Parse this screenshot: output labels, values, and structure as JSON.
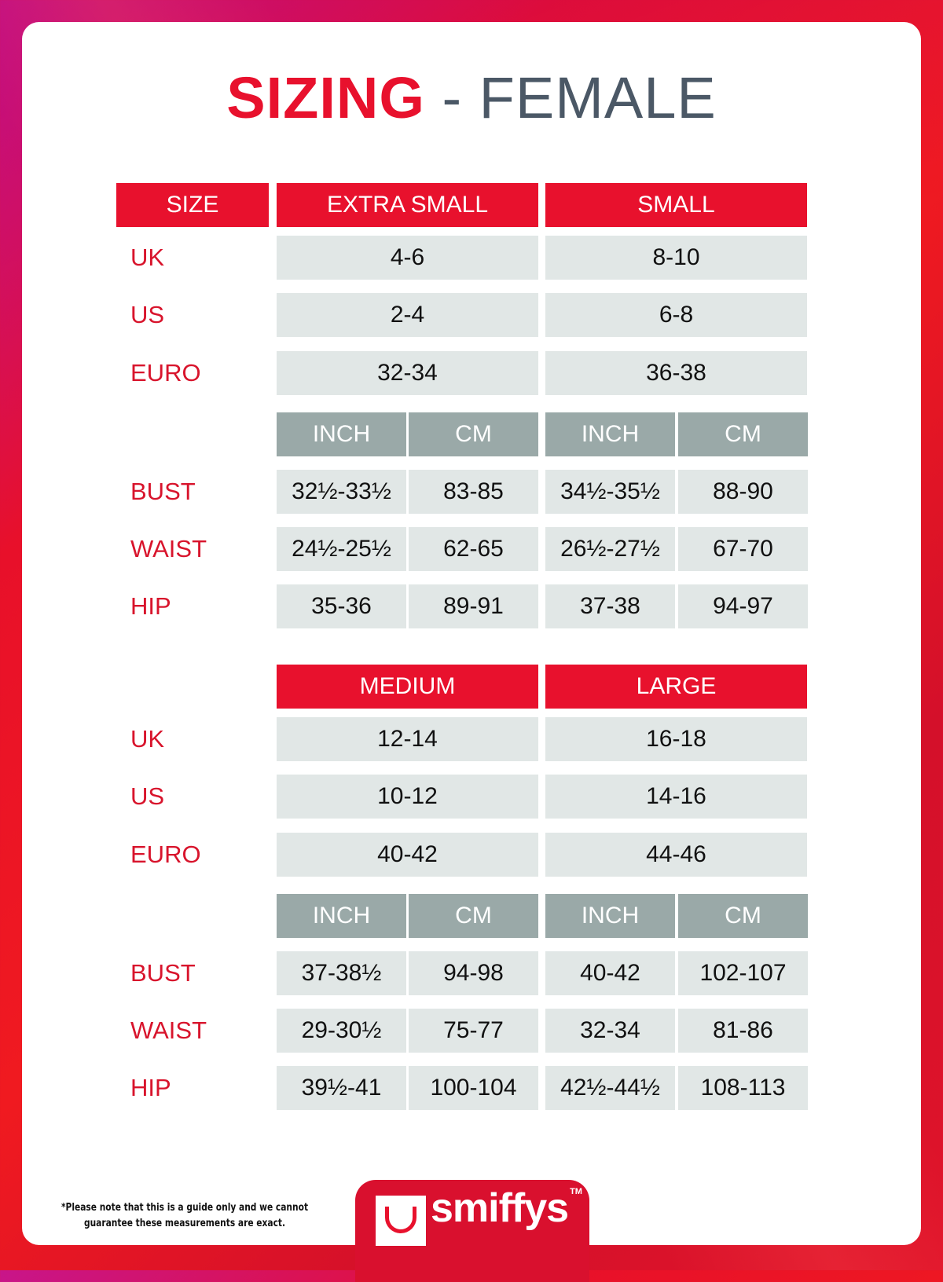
{
  "title": {
    "highlight": "SIZING",
    "rest": " - FEMALE"
  },
  "colors": {
    "accent": "#e8112d",
    "cell": "#e1e7e6",
    "subheader": "#9aa9a8",
    "title_gray": "#4b5866"
  },
  "size_label": "SIZE",
  "row_labels": {
    "uk": "UK",
    "us": "US",
    "euro": "EURO",
    "bust": "BUST",
    "waist": "WAIST",
    "hip": "HIP"
  },
  "unit_labels": [
    "INCH",
    "CM"
  ],
  "sections": [
    {
      "sizes": [
        {
          "name": "EXTRA SMALL",
          "uk": "4-6",
          "us": "2-4",
          "euro": "32-34",
          "bust": [
            "32½-33½",
            "83-85"
          ],
          "waist": [
            "24½-25½",
            "62-65"
          ],
          "hip": [
            "35-36",
            "89-91"
          ]
        },
        {
          "name": "SMALL",
          "uk": "8-10",
          "us": "6-8",
          "euro": "36-38",
          "bust": [
            "34½-35½",
            "88-90"
          ],
          "waist": [
            "26½-27½",
            "67-70"
          ],
          "hip": [
            "37-38",
            "94-97"
          ]
        }
      ]
    },
    {
      "sizes": [
        {
          "name": "MEDIUM",
          "uk": "12-14",
          "us": "10-12",
          "euro": "40-42",
          "bust": [
            "37-38½",
            "94-98"
          ],
          "waist": [
            "29-30½",
            "75-77"
          ],
          "hip": [
            "39½-41",
            "100-104"
          ]
        },
        {
          "name": "LARGE",
          "uk": "16-18",
          "us": "14-16",
          "euro": "44-46",
          "bust": [
            "40-42",
            "102-107"
          ],
          "waist": [
            "32-34",
            "81-86"
          ],
          "hip": [
            "42½-44½",
            "108-113"
          ]
        }
      ]
    }
  ],
  "footnote": "*Please note that this is a guide only and we cannot guarantee these measurements are exact.",
  "logo": {
    "text": "smiffys",
    "tm": "TM"
  }
}
